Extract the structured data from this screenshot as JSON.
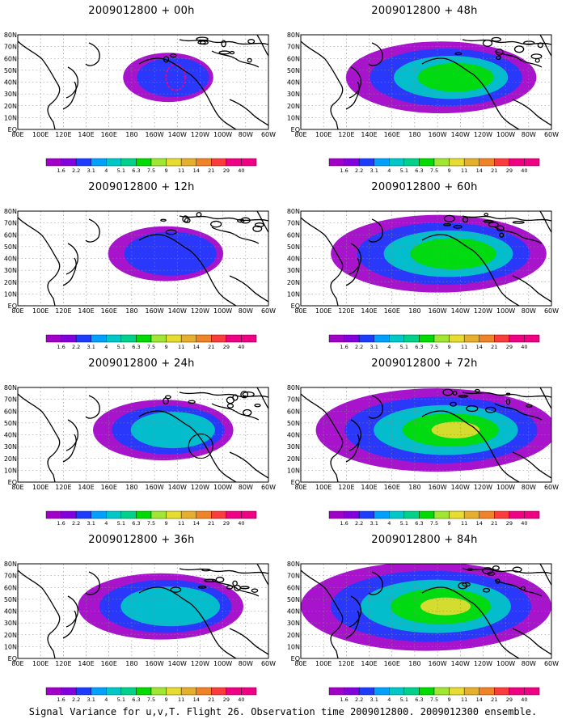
{
  "caption": "Signal Variance for u,v,T. Flight 26. Observation time 2009012800. 2009012300 ensemble.",
  "map": {
    "lon_labels": [
      "80E",
      "100E",
      "120E",
      "140E",
      "160E",
      "180",
      "160W",
      "140W",
      "120W",
      "100W",
      "80W",
      "60W"
    ],
    "lat_labels": [
      "80N",
      "70N",
      "60N",
      "50N",
      "40N",
      "30N",
      "20N",
      "10N",
      "EQ"
    ]
  },
  "colorbar": {
    "labels": [
      "1.6",
      "2.2",
      "3.1",
      "4",
      "5.1",
      "6.3",
      "7.5",
      "9",
      "11",
      "14",
      "21",
      "29",
      "40"
    ],
    "colors": [
      "#a000c8",
      "#8200dc",
      "#1e3cff",
      "#00a0ff",
      "#00c8c8",
      "#00d28c",
      "#00dc00",
      "#a0e632",
      "#e6dc32",
      "#e6af2d",
      "#f08228",
      "#fa3c3c",
      "#f00082"
    ]
  },
  "panels": [
    {
      "title": "2009012800 + 00h",
      "lead": "00h",
      "shading_level": 0
    },
    {
      "title": "2009012800 + 48h",
      "lead": "48h",
      "shading_level": 4
    },
    {
      "title": "2009012800 + 12h",
      "lead": "12h",
      "shading_level": 1
    },
    {
      "title": "2009012800 + 60h",
      "lead": "60h",
      "shading_level": 5
    },
    {
      "title": "2009012800 + 24h",
      "lead": "24h",
      "shading_level": 2
    },
    {
      "title": "2009012800 + 72h",
      "lead": "72h",
      "shading_level": 6
    },
    {
      "title": "2009012800 + 36h",
      "lead": "36h",
      "shading_level": 3
    },
    {
      "title": "2009012800 + 84h",
      "lead": "84h",
      "shading_level": 7
    }
  ]
}
